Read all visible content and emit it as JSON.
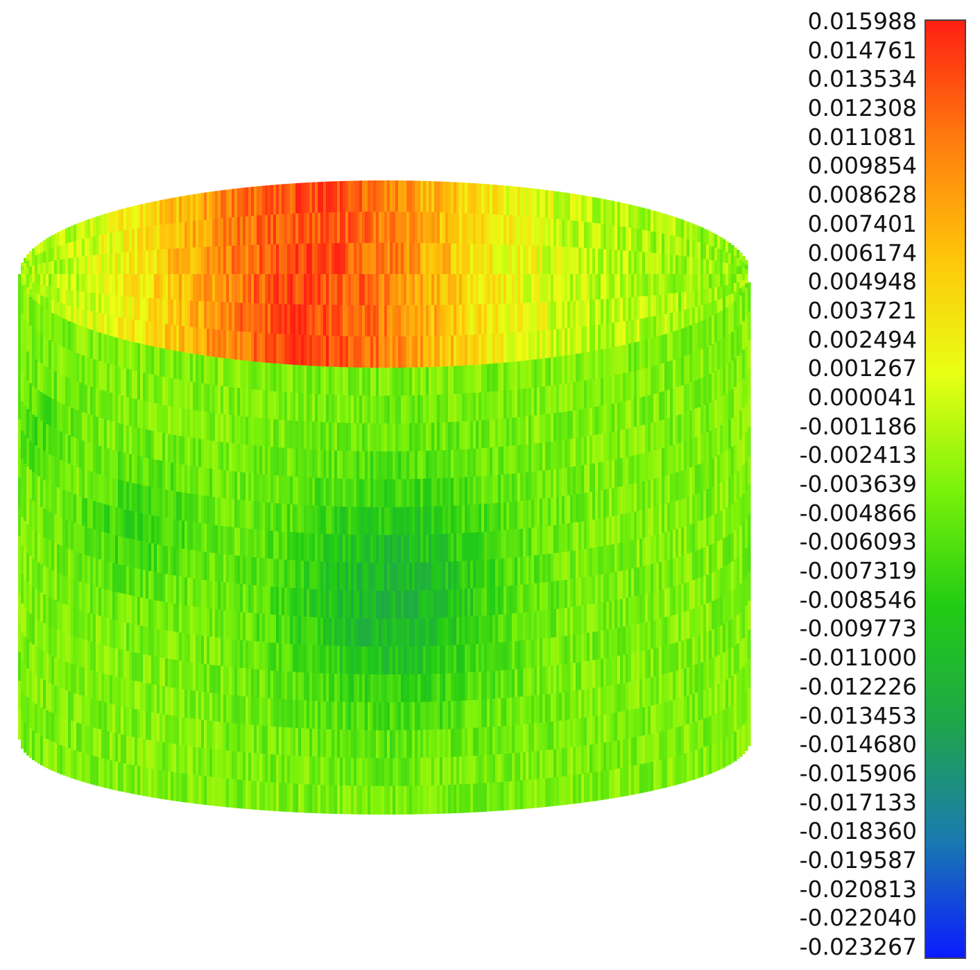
{
  "figure": {
    "type": "cylinder-surface-deviation-map",
    "colormap": {
      "name": "rainbow",
      "stops": [
        "#0a1cff",
        "#1a7ab0",
        "#1ea64a",
        "#22cc14",
        "#7bf20a",
        "#eaff14",
        "#ffc40a",
        "#ff7a0e",
        "#ff1f12"
      ]
    },
    "min_value": -0.023267,
    "max_value": 0.015988,
    "colorbar": {
      "ticks": [
        "0.015988",
        "0.014761",
        "0.013534",
        "0.012308",
        "0.011081",
        "0.009854",
        "0.008628",
        "0.007401",
        "0.006174",
        "0.004948",
        "0.003721",
        "0.002494",
        "0.001267",
        "0.000041",
        "-0.001186",
        "-0.002413",
        "-0.003639",
        "-0.004866",
        "-0.006093",
        "-0.007319",
        "-0.008546",
        "-0.009773",
        "-0.011000",
        "-0.012226",
        "-0.013453",
        "-0.014680",
        "-0.015906",
        "-0.017133",
        "-0.018360",
        "-0.019587",
        "-0.020813",
        "-0.022040",
        "-0.023267"
      ]
    }
  }
}
